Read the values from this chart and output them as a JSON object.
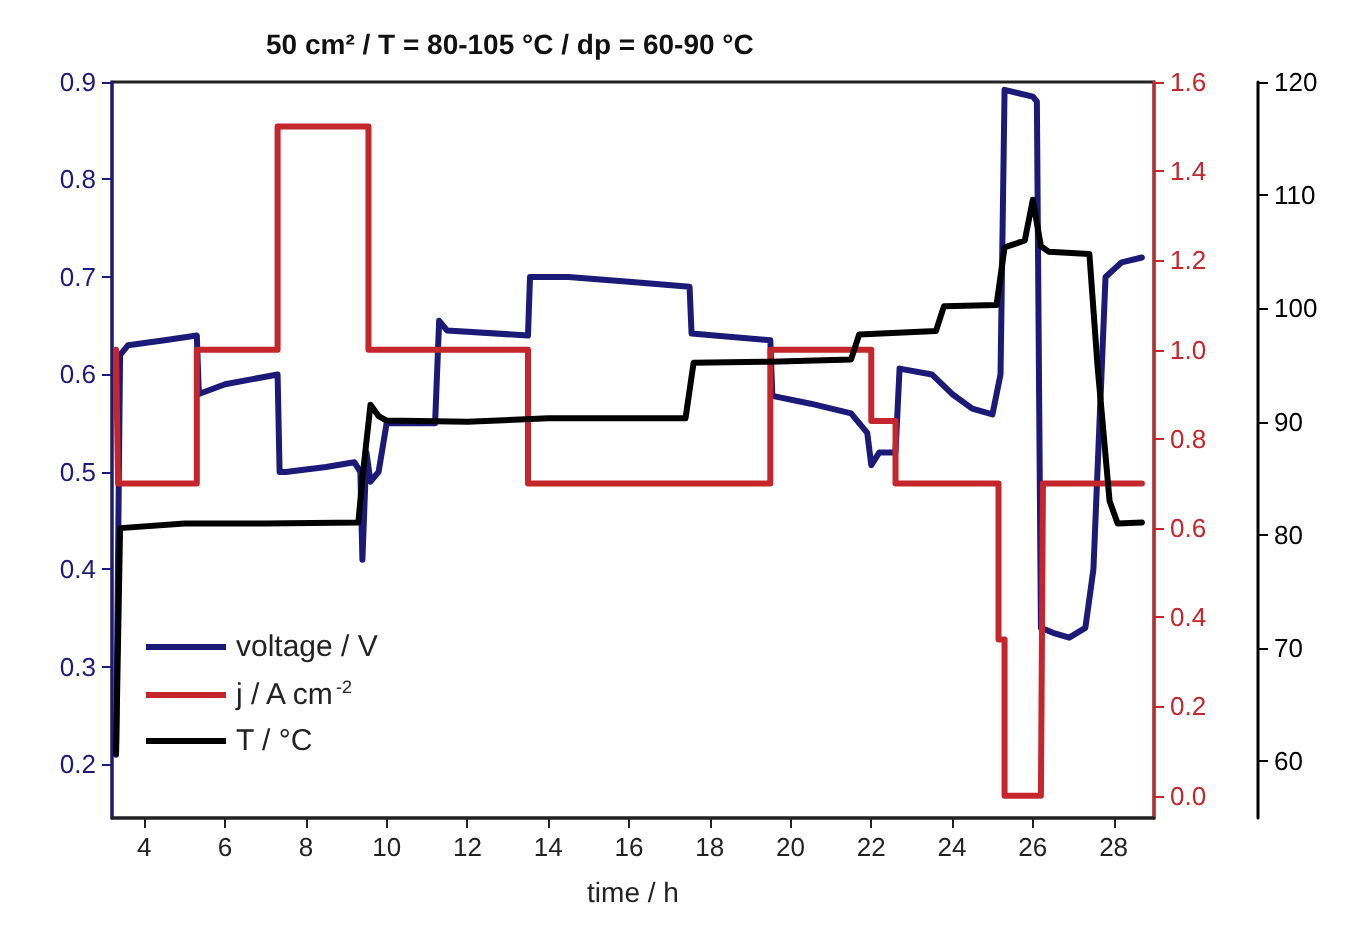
{
  "chart_data": {
    "type": "line",
    "title": "50 cm² / T = 80-105 °C / dp = 60-90 °C",
    "xlabel": "time / h",
    "xlim": [
      3.2,
      29
    ],
    "xticks": [
      4,
      6,
      8,
      10,
      12,
      14,
      16,
      18,
      20,
      22,
      24,
      26,
      28
    ],
    "ylim": [
      0.145,
      0.9
    ],
    "yticks": [
      0.2,
      0.3,
      0.4,
      0.5,
      0.6,
      0.7,
      0.8,
      0.9
    ],
    "y2lim": [
      -0.05,
      1.6
    ],
    "y2ticks": [
      {
        "value": 0,
        "label": "0.0"
      },
      0.2,
      0.4,
      0.6,
      0.8,
      {
        "value": 1,
        "label": "1.0"
      },
      1.2,
      1.4,
      1.6
    ],
    "y3lim": [
      55,
      120
    ],
    "y3ticks": [
      60,
      70,
      80,
      90,
      100,
      110,
      120
    ],
    "legend": "bottom left",
    "grid": false,
    "marker": "none",
    "line_style": "solid",
    "series": [
      {
        "name": "voltage / V",
        "color": "#1c1a78",
        "x": [
          3.3,
          3.4,
          3.6,
          4.5,
          5.3,
          5.35,
          6.0,
          7.3,
          7.35,
          7.5,
          8.5,
          9.2,
          9.35,
          9.4,
          9.5,
          9.6,
          9.8,
          10.0,
          11.2,
          11.3,
          11.5,
          13.5,
          13.55,
          14.5,
          16.0,
          17.5,
          17.55,
          19.5,
          19.55,
          20.5,
          21.5,
          21.9,
          22.0,
          22.2,
          22.6,
          22.7,
          23.5,
          24.0,
          24.5,
          25.0,
          25.2,
          25.3,
          26.0,
          26.1,
          26.2,
          26.5,
          26.9,
          27.3,
          27.5,
          27.8,
          28.2,
          28.7
        ],
        "values": [
          0.21,
          0.62,
          0.63,
          0.635,
          0.64,
          0.58,
          0.59,
          0.6,
          0.5,
          0.5,
          0.505,
          0.51,
          0.5,
          0.41,
          0.52,
          0.49,
          0.5,
          0.55,
          0.55,
          0.655,
          0.645,
          0.64,
          0.7,
          0.7,
          0.695,
          0.69,
          0.642,
          0.635,
          0.578,
          0.57,
          0.56,
          0.54,
          0.507,
          0.52,
          0.52,
          0.606,
          0.6,
          0.58,
          0.565,
          0.559,
          0.6,
          0.892,
          0.885,
          0.88,
          0.34,
          0.335,
          0.33,
          0.34,
          0.4,
          0.7,
          0.715,
          0.72
        ]
      },
      {
        "name": "j / A cm$^{-2}$",
        "color": "#c4262b",
        "axis": "y2",
        "x": [
          3.3,
          3.35,
          5.3,
          5.3,
          7.3,
          7.3,
          9.55,
          9.55,
          13.5,
          13.5,
          19.5,
          19.5,
          22.0,
          22.0,
          22.6,
          22.6,
          25.15,
          25.15,
          25.3,
          25.3,
          26.2,
          26.25,
          28.7
        ],
        "values": [
          1.0,
          0.7,
          0.7,
          1.0,
          1.0,
          1.5,
          1.5,
          1.0,
          1.0,
          0.7,
          0.7,
          1.0,
          1.0,
          0.84,
          0.84,
          0.7,
          0.7,
          0.35,
          0.35,
          0.0,
          0.0,
          0.7,
          0.7
        ]
      },
      {
        "name": "T / °C",
        "color": "#000000",
        "axis": "y3",
        "x": [
          3.3,
          3.4,
          5.0,
          7.0,
          9.3,
          9.4,
          9.6,
          9.8,
          10.0,
          12.0,
          14.0,
          17.4,
          17.6,
          19.5,
          21.5,
          21.7,
          23.6,
          23.8,
          25.1,
          25.3,
          25.8,
          26.0,
          26.2,
          26.4,
          27.4,
          27.6,
          27.9,
          28.1,
          28.7
        ],
        "values": [
          60.7,
          80.6,
          81.0,
          81.0,
          81.1,
          85.0,
          91.5,
          90.5,
          90.1,
          90.0,
          90.3,
          90.3,
          95.2,
          95.3,
          95.5,
          97.7,
          98.0,
          100.2,
          100.3,
          105.4,
          106.0,
          109.6,
          105.5,
          105.0,
          104.8,
          95.0,
          83.0,
          81.0,
          81.1
        ]
      }
    ]
  }
}
